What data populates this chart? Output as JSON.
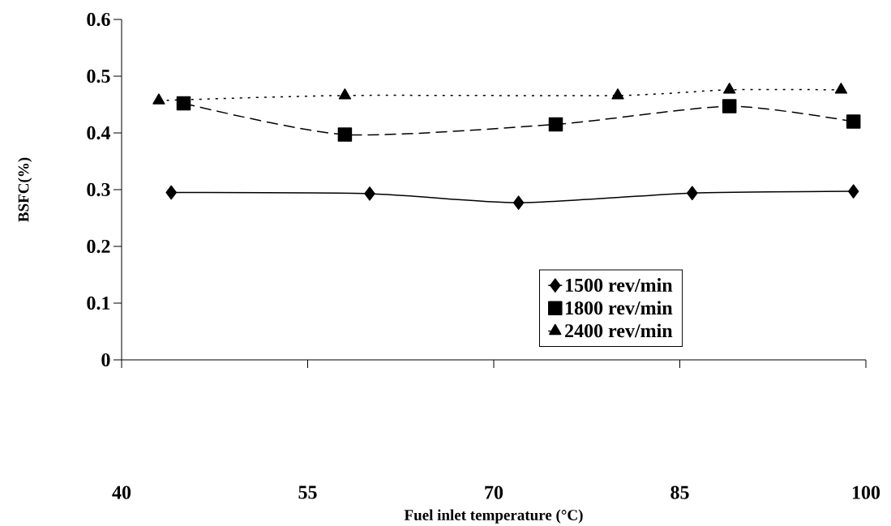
{
  "chart_data": {
    "type": "line",
    "xlabel": "Fuel inlet temperature (°C)",
    "ylabel": "BSFC(%)",
    "xlim": [
      40,
      100
    ],
    "xticks": [
      40,
      55,
      70,
      85,
      100
    ],
    "ylim": [
      0,
      0.6
    ],
    "yticks": [
      0,
      0.1,
      0.2,
      0.3,
      0.4,
      0.5,
      0.6
    ],
    "legend": "bottom right",
    "series": [
      {
        "name": "1500 rev/min",
        "color": "#000000",
        "marker": "diamond",
        "line_style": "solid",
        "x": [
          44,
          60,
          72,
          86,
          99
        ],
        "values": [
          0.295,
          0.293,
          0.277,
          0.294,
          0.297
        ]
      },
      {
        "name": "1800 rev/min",
        "color": "#000000",
        "marker": "square",
        "line_style": "dashed",
        "x": [
          45,
          58,
          75,
          89,
          99
        ],
        "values": [
          0.452,
          0.397,
          0.415,
          0.447,
          0.42
        ]
      },
      {
        "name": "2400 rev/min",
        "color": "#000000",
        "marker": "triangle",
        "line_style": "dotted",
        "x": [
          43,
          58,
          80,
          89,
          98
        ],
        "values": [
          0.457,
          0.466,
          0.466,
          0.476,
          0.476
        ]
      }
    ]
  }
}
